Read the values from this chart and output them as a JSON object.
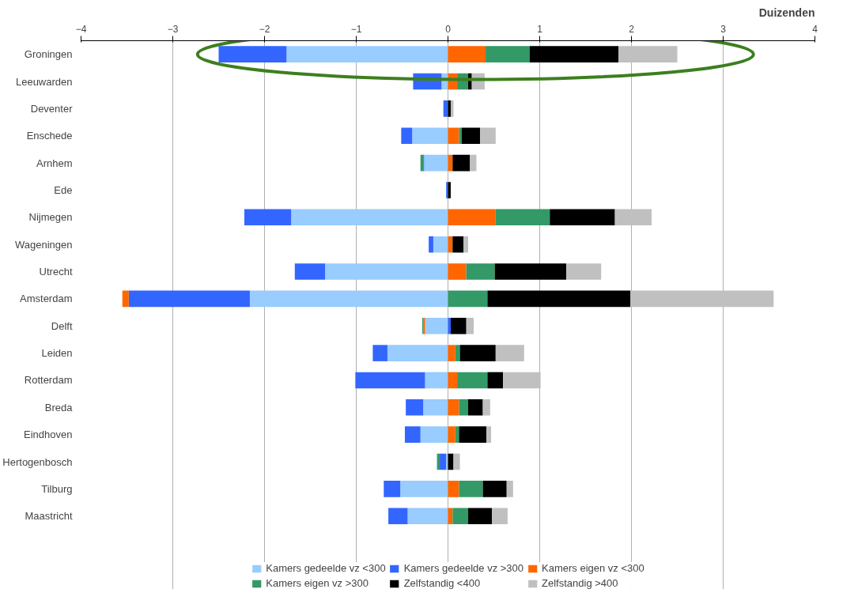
{
  "chart_data": {
    "type": "bar",
    "orientation": "horizontal",
    "stacked": true,
    "xlabel": "Duizenden",
    "categories": [
      "Groningen",
      "Leeuwarden",
      "Deventer",
      "Enschede",
      "Arnhem",
      "Ede",
      "Nijmegen",
      "Wageningen",
      "Utrecht",
      "Amsterdam",
      "Delft",
      "Leiden",
      "Rotterdam",
      "Breda",
      "Eindhoven",
      "Hertogenbosch",
      "Tilburg",
      "Maastricht"
    ],
    "series": [
      {
        "name": "Kamers gedeelde vz <300",
        "color": "#99ccff",
        "values": [
          -1.76,
          -0.07,
          null,
          -0.39,
          -0.26,
          null,
          -1.71,
          -0.16,
          -1.34,
          -2.16,
          -0.25,
          -0.66,
          -0.25,
          -0.27,
          -0.3,
          -0.02,
          -0.52,
          -0.44
        ]
      },
      {
        "name": "Kamers gedeelde vz >300",
        "color": "#3366ff",
        "values": [
          -0.74,
          -0.31,
          -0.05,
          -0.12,
          -0.01,
          -0.02,
          -0.51,
          -0.05,
          -0.33,
          -1.32,
          0.03,
          -0.16,
          -0.76,
          -0.19,
          -0.17,
          -0.07,
          -0.18,
          -0.21
        ]
      },
      {
        "name": "Kamers eigen vz <300",
        "color": "#ff6600",
        "values": [
          0.41,
          0.1,
          null,
          0.12,
          0.05,
          null,
          0.52,
          0.05,
          0.2,
          -0.07,
          -0.02,
          0.08,
          0.1,
          0.12,
          0.08,
          null,
          0.12,
          0.05
        ]
      },
      {
        "name": "Kamers eigen vz >300",
        "color": "#339966",
        "values": [
          0.48,
          0.12,
          null,
          0.03,
          -0.03,
          null,
          0.59,
          null,
          0.31,
          0.43,
          -0.01,
          0.05,
          0.33,
          0.1,
          0.04,
          -0.03,
          0.26,
          0.17
        ]
      },
      {
        "name": "Zelfstandig <400",
        "color": "#000000",
        "values": [
          0.97,
          0.04,
          0.03,
          0.2,
          0.19,
          0.03,
          0.71,
          0.12,
          0.78,
          1.56,
          0.17,
          0.39,
          0.17,
          0.16,
          0.3,
          0.06,
          0.26,
          0.26
        ]
      },
      {
        "name": "Zelfstandig >400",
        "color": "#c0c0c0",
        "values": [
          0.64,
          0.14,
          0.03,
          0.17,
          0.07,
          null,
          0.4,
          0.05,
          0.38,
          1.56,
          0.08,
          0.31,
          0.41,
          0.08,
          0.05,
          0.07,
          0.07,
          0.17
        ]
      }
    ],
    "xlim": [
      -4,
      4
    ],
    "xticks": [
      -4,
      -3,
      -2,
      -1,
      0,
      1,
      2,
      3,
      4
    ],
    "grid": "x",
    "legend": "bottom"
  }
}
